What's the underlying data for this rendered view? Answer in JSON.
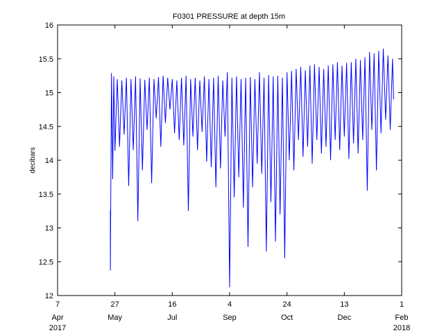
{
  "chart_data": {
    "type": "line",
    "title": "F0301 PRESSURE at depth 15m",
    "xlabel": "",
    "ylabel": "decibars",
    "ylim": [
      12,
      16
    ],
    "xlim": [
      "2017-04-07",
      "2018-02-01"
    ],
    "yticks": [
      12,
      12.5,
      13,
      13.5,
      14,
      14.5,
      15,
      15.5,
      16
    ],
    "ytick_labels": [
      "12",
      "12.5",
      "13",
      "13.5",
      "14",
      "14.5",
      "15",
      "15.5",
      "16"
    ],
    "xticks": [
      {
        "date": "2017-04-07",
        "label": "7",
        "month_label": "Apr"
      },
      {
        "date": "2017-05-27",
        "label": "27",
        "month_label": "May"
      },
      {
        "date": "2017-07-16",
        "label": "16",
        "month_label": "Jul"
      },
      {
        "date": "2017-09-04",
        "label": "4",
        "month_label": "Sep"
      },
      {
        "date": "2017-10-24",
        "label": "24",
        "month_label": "Oct"
      },
      {
        "date": "2017-12-13",
        "label": "13",
        "month_label": "Dec"
      },
      {
        "date": "2018-02-01",
        "label": "1",
        "month_label": "Feb"
      }
    ],
    "year_labels": [
      "2017",
      "2018"
    ],
    "grid": false,
    "line_color": "#0000ff",
    "series": [
      {
        "x": [
          "2017-05-23",
          "2017-05-23",
          "2017-05-24",
          "2017-05-25",
          "2017-05-26",
          "2017-05-27",
          "2017-05-29",
          "2017-05-31",
          "2017-06-02",
          "2017-06-04",
          "2017-06-06",
          "2017-06-08",
          "2017-06-10",
          "2017-06-12",
          "2017-06-14",
          "2017-06-16",
          "2017-06-18",
          "2017-06-20",
          "2017-06-22",
          "2017-06-24",
          "2017-06-26",
          "2017-06-28",
          "2017-06-30",
          "2017-07-02",
          "2017-07-04",
          "2017-07-06",
          "2017-07-08",
          "2017-07-10",
          "2017-07-12",
          "2017-07-14",
          "2017-07-16",
          "2017-07-18",
          "2017-07-20",
          "2017-07-22",
          "2017-07-24",
          "2017-07-26",
          "2017-07-28",
          "2017-07-30",
          "2017-08-01",
          "2017-08-03",
          "2017-08-05",
          "2017-08-07",
          "2017-08-09",
          "2017-08-11",
          "2017-08-13",
          "2017-08-15",
          "2017-08-17",
          "2017-08-19",
          "2017-08-21",
          "2017-08-23",
          "2017-08-25",
          "2017-08-27",
          "2017-08-29",
          "2017-08-31",
          "2017-09-02",
          "2017-09-04",
          "2017-09-06",
          "2017-09-08",
          "2017-09-10",
          "2017-09-12",
          "2017-09-14",
          "2017-09-16",
          "2017-09-18",
          "2017-09-20",
          "2017-09-22",
          "2017-09-24",
          "2017-09-26",
          "2017-09-28",
          "2017-09-30",
          "2017-10-02",
          "2017-10-04",
          "2017-10-06",
          "2017-10-08",
          "2017-10-10",
          "2017-10-12",
          "2017-10-14",
          "2017-10-16",
          "2017-10-18",
          "2017-10-20",
          "2017-10-22",
          "2017-10-24",
          "2017-10-26",
          "2017-10-28",
          "2017-10-30",
          "2017-11-01",
          "2017-11-03",
          "2017-11-05",
          "2017-11-07",
          "2017-11-09",
          "2017-11-11",
          "2017-11-13",
          "2017-11-15",
          "2017-11-17",
          "2017-11-19",
          "2017-11-21",
          "2017-11-23",
          "2017-11-25",
          "2017-11-27",
          "2017-11-29",
          "2017-12-01",
          "2017-12-03",
          "2017-12-05",
          "2017-12-07",
          "2017-12-09",
          "2017-12-11",
          "2017-12-13",
          "2017-12-15",
          "2017-12-17",
          "2017-12-19",
          "2017-12-21",
          "2017-12-23",
          "2017-12-25",
          "2017-12-27",
          "2017-12-29",
          "2017-12-31",
          "2018-01-02",
          "2018-01-04",
          "2018-01-06",
          "2018-01-08",
          "2018-01-10",
          "2018-01-12",
          "2018-01-14",
          "2018-01-16",
          "2018-01-18",
          "2018-01-20",
          "2018-01-22",
          "2018-01-24",
          "2018-01-25"
        ],
        "y": [
          13.26,
          12.37,
          15.29,
          13.72,
          15.24,
          14.14,
          15.2,
          14.2,
          15.18,
          14.38,
          15.22,
          13.62,
          15.2,
          14.15,
          15.24,
          13.1,
          15.21,
          13.85,
          15.19,
          14.45,
          15.22,
          13.66,
          15.2,
          14.62,
          15.23,
          14.2,
          15.25,
          14.55,
          15.22,
          14.75,
          15.2,
          14.4,
          15.18,
          14.3,
          15.22,
          14.22,
          15.25,
          13.25,
          15.2,
          14.35,
          15.22,
          14.15,
          15.18,
          14.42,
          15.24,
          13.98,
          15.2,
          13.9,
          15.22,
          13.6,
          15.25,
          13.88,
          15.18,
          14.35,
          15.3,
          12.12,
          15.22,
          13.45,
          15.24,
          13.75,
          15.2,
          13.3,
          15.22,
          12.72,
          15.23,
          13.6,
          15.2,
          13.95,
          15.3,
          13.8,
          15.22,
          12.65,
          15.26,
          13.38,
          15.24,
          12.8,
          15.25,
          13.2,
          15.22,
          12.55,
          15.3,
          14.0,
          15.32,
          13.85,
          15.35,
          14.3,
          15.38,
          14.05,
          15.33,
          14.2,
          15.4,
          13.95,
          15.42,
          14.3,
          15.38,
          14.1,
          15.35,
          14.2,
          15.4,
          14.0,
          15.42,
          14.3,
          15.45,
          14.15,
          15.4,
          14.35,
          15.44,
          14.02,
          15.45,
          14.25,
          15.5,
          14.1,
          15.48,
          14.3,
          15.52,
          13.55,
          15.6,
          14.45,
          15.58,
          13.85,
          15.62,
          14.4,
          15.65,
          14.6,
          15.55,
          14.45,
          15.5,
          14.9
        ]
      }
    ]
  }
}
